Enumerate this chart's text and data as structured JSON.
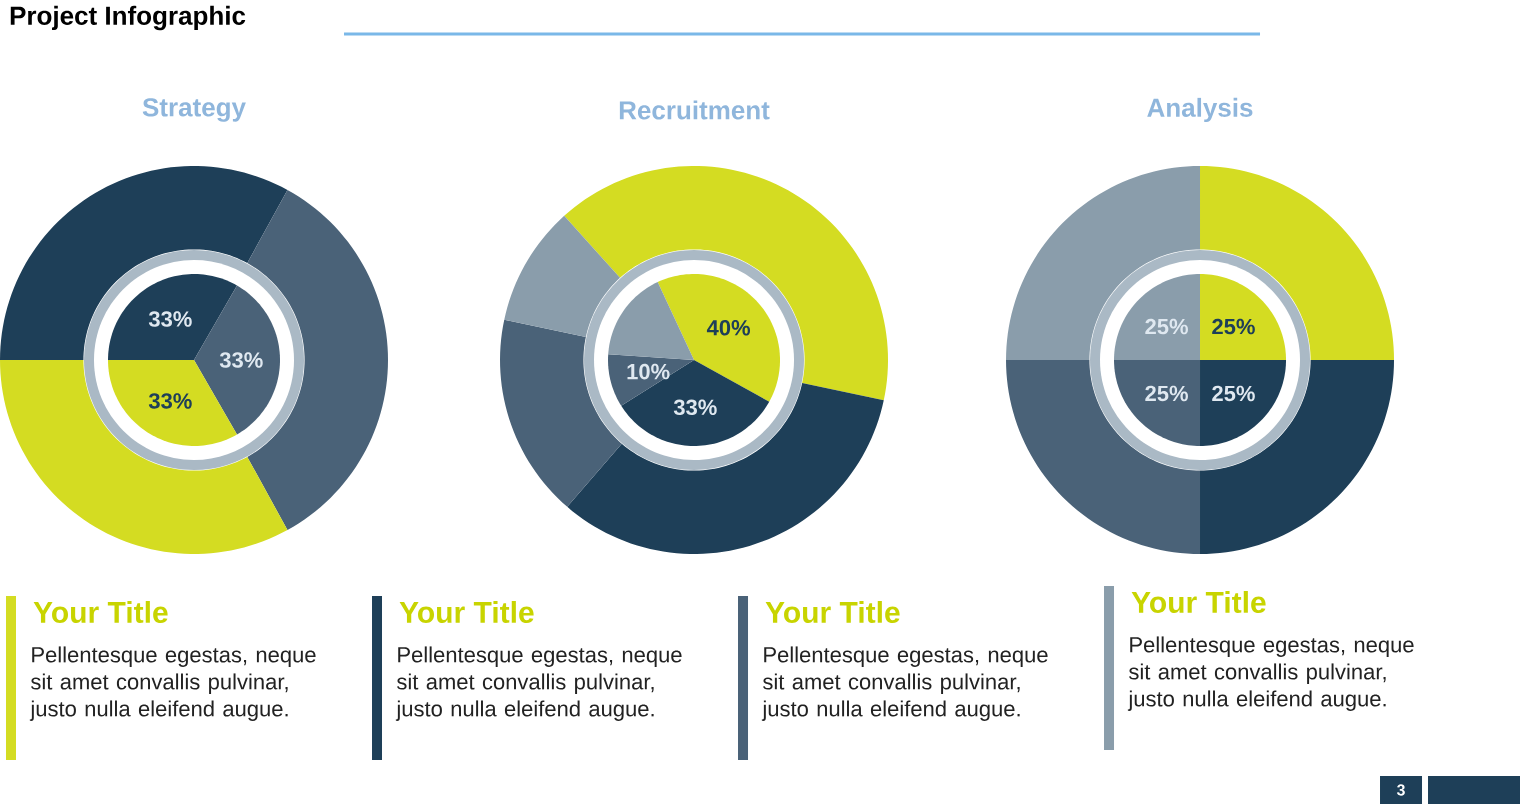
{
  "chart_data": [
    {
      "type": "donut",
      "title": "Strategy",
      "categories": [
        null,
        null,
        null
      ],
      "values": [
        33,
        34,
        33
      ],
      "colors": [
        "#1e3f58",
        "#4a6278",
        "#d4dc22"
      ]
    },
    {
      "type": "pie",
      "categories": [
        null,
        null,
        null
      ],
      "values": [
        33,
        33,
        33
      ],
      "colors": [
        "#1e3f58",
        "#4a6278",
        "#d4dc22"
      ],
      "value_labels": [
        "33%",
        "33%",
        "33%"
      ]
    },
    {
      "type": "donut",
      "title": "Recruitment",
      "categories": [
        null,
        null,
        null,
        null
      ],
      "values": [
        40,
        33,
        17,
        10
      ],
      "colors": [
        "#d4dc22",
        "#1e3f58",
        "#4a6278",
        "#8a9dab"
      ]
    },
    {
      "type": "pie",
      "categories": [
        null,
        null,
        null,
        null
      ],
      "values": [
        40,
        33,
        10,
        17
      ],
      "colors": [
        "#d4dc22",
        "#1e3f58",
        "#4a6278",
        "#8a9dab"
      ],
      "value_labels": [
        "40%",
        "33%",
        "10%",
        null
      ]
    },
    {
      "type": "donut",
      "title": "Analysis",
      "categories": [
        null,
        null,
        null,
        null
      ],
      "values": [
        25,
        25,
        25,
        25
      ],
      "colors": [
        "#d4dc22",
        "#1e3f58",
        "#4a6278",
        "#8a9dab"
      ]
    },
    {
      "type": "pie",
      "categories": [
        null,
        null,
        null,
        null
      ],
      "values": [
        25,
        25,
        25,
        25
      ],
      "colors": [
        "#d4dc22",
        "#1e3f58",
        "#4a6278",
        "#8a9dab"
      ],
      "value_labels": [
        "25%",
        "25%",
        "25%",
        "25%"
      ]
    },
    {
      "type": "other",
      "title": "Project Infographic",
      "annotations": [
        "Your Title",
        "Pellentesque egestas, neque sit amet convallis pulvinar, justo nulla eleifend augue.",
        "Your Title",
        "Pellentesque egestas, neque sit amet convallis pulvinar, justo nulla eleifend augue.",
        "Your Title",
        "Pellentesque egestas, neque sit amet convallis pulvinar, justo nulla eleifend augue.",
        "Your Title",
        "Pellentesque egestas, neque sit amet convallis pulvinar, justo nulla eleifend augue.",
        "3"
      ]
    }
  ]
}
